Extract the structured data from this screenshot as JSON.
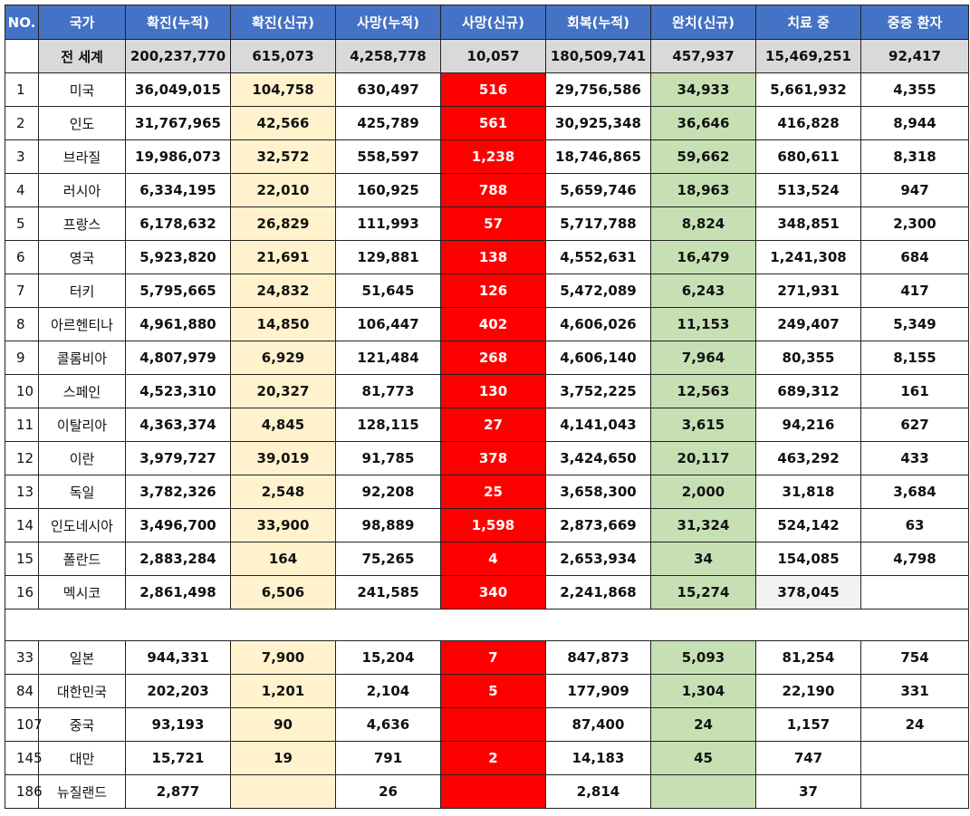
{
  "headers": [
    "NO.",
    "국가",
    "확진(누적)",
    "확진(신규)",
    "사망(누적)",
    "사망(신규)",
    "회복(누적)",
    "완치(신규)",
    "치료 중",
    "중증 환자"
  ],
  "world": {
    "label": "전 세계",
    "cases_total": "200,237,770",
    "cases_new": "615,073",
    "deaths_total": "4,258,778",
    "deaths_new": "10,057",
    "recovered_total": "180,509,741",
    "recovered_new": "457,937",
    "active": "15,469,251",
    "serious": "92,417"
  },
  "rows": [
    {
      "no": "1",
      "country": "미국",
      "cases_total": "36,049,015",
      "cases_new": "104,758",
      "deaths_total": "630,497",
      "deaths_new": "516",
      "recovered_total": "29,756,586",
      "recovered_new": "34,933",
      "active": "5,661,932",
      "serious": "4,355"
    },
    {
      "no": "2",
      "country": "인도",
      "cases_total": "31,767,965",
      "cases_new": "42,566",
      "deaths_total": "425,789",
      "deaths_new": "561",
      "recovered_total": "30,925,348",
      "recovered_new": "36,646",
      "active": "416,828",
      "serious": "8,944"
    },
    {
      "no": "3",
      "country": "브라질",
      "cases_total": "19,986,073",
      "cases_new": "32,572",
      "deaths_total": "558,597",
      "deaths_new": "1,238",
      "recovered_total": "18,746,865",
      "recovered_new": "59,662",
      "active": "680,611",
      "serious": "8,318"
    },
    {
      "no": "4",
      "country": "러시아",
      "cases_total": "6,334,195",
      "cases_new": "22,010",
      "deaths_total": "160,925",
      "deaths_new": "788",
      "recovered_total": "5,659,746",
      "recovered_new": "18,963",
      "active": "513,524",
      "serious": "947"
    },
    {
      "no": "5",
      "country": "프랑스",
      "cases_total": "6,178,632",
      "cases_new": "26,829",
      "deaths_total": "111,993",
      "deaths_new": "57",
      "recovered_total": "5,717,788",
      "recovered_new": "8,824",
      "active": "348,851",
      "serious": "2,300"
    },
    {
      "no": "6",
      "country": "영국",
      "cases_total": "5,923,820",
      "cases_new": "21,691",
      "deaths_total": "129,881",
      "deaths_new": "138",
      "recovered_total": "4,552,631",
      "recovered_new": "16,479",
      "active": "1,241,308",
      "serious": "684"
    },
    {
      "no": "7",
      "country": "터키",
      "cases_total": "5,795,665",
      "cases_new": "24,832",
      "deaths_total": "51,645",
      "deaths_new": "126",
      "recovered_total": "5,472,089",
      "recovered_new": "6,243",
      "active": "271,931",
      "serious": "417"
    },
    {
      "no": "8",
      "country": "아르헨티나",
      "cases_total": "4,961,880",
      "cases_new": "14,850",
      "deaths_total": "106,447",
      "deaths_new": "402",
      "recovered_total": "4,606,026",
      "recovered_new": "11,153",
      "active": "249,407",
      "serious": "5,349"
    },
    {
      "no": "9",
      "country": "콜롬비아",
      "cases_total": "4,807,979",
      "cases_new": "6,929",
      "deaths_total": "121,484",
      "deaths_new": "268",
      "recovered_total": "4,606,140",
      "recovered_new": "7,964",
      "active": "80,355",
      "serious": "8,155"
    },
    {
      "no": "10",
      "country": "스페인",
      "cases_total": "4,523,310",
      "cases_new": "20,327",
      "deaths_total": "81,773",
      "deaths_new": "130",
      "recovered_total": "3,752,225",
      "recovered_new": "12,563",
      "active": "689,312",
      "serious": "161"
    },
    {
      "no": "11",
      "country": "이탈리아",
      "cases_total": "4,363,374",
      "cases_new": "4,845",
      "deaths_total": "128,115",
      "deaths_new": "27",
      "recovered_total": "4,141,043",
      "recovered_new": "3,615",
      "active": "94,216",
      "serious": "627"
    },
    {
      "no": "12",
      "country": "이란",
      "cases_total": "3,979,727",
      "cases_new": "39,019",
      "deaths_total": "91,785",
      "deaths_new": "378",
      "recovered_total": "3,424,650",
      "recovered_new": "20,117",
      "active": "463,292",
      "serious": "433"
    },
    {
      "no": "13",
      "country": "독일",
      "cases_total": "3,782,326",
      "cases_new": "2,548",
      "deaths_total": "92,208",
      "deaths_new": "25",
      "recovered_total": "3,658,300",
      "recovered_new": "2,000",
      "active": "31,818",
      "serious": "3,684"
    },
    {
      "no": "14",
      "country": "인도네시아",
      "cases_total": "3,496,700",
      "cases_new": "33,900",
      "deaths_total": "98,889",
      "deaths_new": "1,598",
      "recovered_total": "2,873,669",
      "recovered_new": "31,324",
      "active": "524,142",
      "serious": "63"
    },
    {
      "no": "15",
      "country": "폴란드",
      "cases_total": "2,883,284",
      "cases_new": "164",
      "deaths_total": "75,265",
      "deaths_new": "4",
      "recovered_total": "2,653,934",
      "recovered_new": "34",
      "active": "154,085",
      "serious": "4,798"
    },
    {
      "no": "16",
      "country": "멕시코",
      "cases_total": "2,861,498",
      "cases_new": "6,506",
      "deaths_total": "241,585",
      "deaths_new": "340",
      "recovered_total": "2,241,868",
      "recovered_new": "15,274",
      "active": "378,045",
      "serious": ""
    }
  ],
  "rows2": [
    {
      "no": "33",
      "country": "일본",
      "cases_total": "944,331",
      "cases_new": "7,900",
      "deaths_total": "15,204",
      "deaths_new": "7",
      "recovered_total": "847,873",
      "recovered_new": "5,093",
      "active": "81,254",
      "serious": "754"
    },
    {
      "no": "84",
      "country": "대한민국",
      "cases_total": "202,203",
      "cases_new": "1,201",
      "deaths_total": "2,104",
      "deaths_new": "5",
      "recovered_total": "177,909",
      "recovered_new": "1,304",
      "active": "22,190",
      "serious": "331"
    },
    {
      "no": "107",
      "country": "중국",
      "cases_total": "93,193",
      "cases_new": "90",
      "deaths_total": "4,636",
      "deaths_new": "",
      "recovered_total": "87,400",
      "recovered_new": "24",
      "active": "1,157",
      "serious": "24"
    },
    {
      "no": "145",
      "country": "대만",
      "cases_total": "15,721",
      "cases_new": "19",
      "deaths_total": "791",
      "deaths_new": "2",
      "recovered_total": "14,183",
      "recovered_new": "45",
      "active": "747",
      "serious": ""
    },
    {
      "no": "186",
      "country": "뉴질랜드",
      "cases_total": "2,877",
      "cases_new": "",
      "deaths_total": "26",
      "deaths_new": "",
      "recovered_total": "2,814",
      "recovered_new": "",
      "active": "37",
      "serious": ""
    }
  ],
  "colors": {
    "header_bg": "#4472c4",
    "world_row_bg": "#d9d9d9",
    "new_cases_bg": "#fff2cc",
    "new_deaths_bg": "#ff0000",
    "new_recovered_bg": "#c6e0b4"
  }
}
